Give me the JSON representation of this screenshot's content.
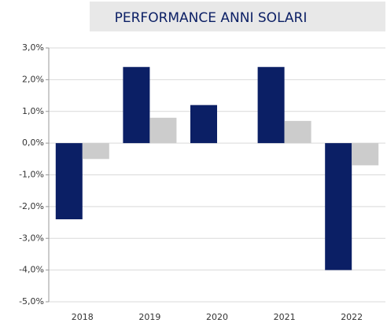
{
  "chart_data": {
    "type": "bar",
    "title": "PERFORMANCE ANNI SOLARI",
    "categories": [
      "2018",
      "2019",
      "2020",
      "2021",
      "2022"
    ],
    "series": [
      {
        "color": "#0b1f65",
        "values": [
          -2.4,
          2.4,
          1.2,
          2.4,
          -4.0
        ]
      },
      {
        "color": "#cccccc",
        "values": [
          -0.5,
          0.8,
          null,
          0.7,
          -0.7
        ]
      }
    ],
    "ylim": [
      -5,
      3
    ],
    "yticks": [
      {
        "value": 3,
        "label": "3,0%"
      },
      {
        "value": 2,
        "label": "2,0%"
      },
      {
        "value": 1,
        "label": "1,0%"
      },
      {
        "value": 0,
        "label": "0,0%"
      },
      {
        "value": -1,
        "label": "-1,0%"
      },
      {
        "value": -2,
        "label": "-2,0%"
      },
      {
        "value": -3,
        "label": "-3,0%"
      },
      {
        "value": -4,
        "label": "-4,0%"
      },
      {
        "value": -5,
        "label": "-5,0%"
      }
    ],
    "grid": true
  }
}
